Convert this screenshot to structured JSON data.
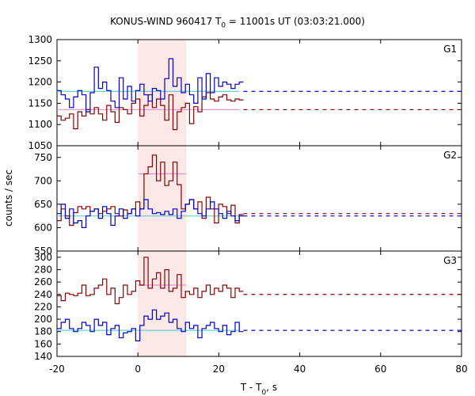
{
  "chart_data": {
    "type": "line",
    "title_main": "KONUS-WIND 960417 T",
    "title_sub": "0",
    "title_rest": " = 11001s UT (03:03:21.000)",
    "xlabel_main": "T - T",
    "xlabel_sub": "0",
    "xlabel_rest": ", s",
    "ylabel": "counts / sec",
    "xlim": [
      -20,
      80
    ],
    "xticks": [
      "-20",
      "0",
      "20",
      "40",
      "60",
      "80"
    ],
    "highlight_interval": [
      0,
      12
    ],
    "colors": {
      "dark_red": "#8b0000",
      "blue": "#0000cd",
      "cyan": "#5fd3d3",
      "pink": "#e88fe0",
      "shade": "#fde8e8"
    },
    "panels": [
      {
        "name": "G1",
        "ylim": [
          1050,
          1300
        ],
        "yticks": [
          1050,
          1100,
          1150,
          1200,
          1250,
          1300
        ],
        "series": [
          {
            "color": "dark_red",
            "x0": -20,
            "dx": 1.024,
            "values": [
              1120,
              1110,
              1115,
              1125,
              1090,
              1130,
              1120,
              1135,
              1125,
              1140,
              1125,
              1110,
              1145,
              1130,
              1105,
              1140,
              1135,
              1125,
              1150,
              1160,
              1120,
              1145,
              1170,
              1140,
              1160,
              1145,
              1110,
              1170,
              1088,
              1130,
              1140,
              1150,
              1102,
              1142,
              1130,
              1165,
              1175,
              1160,
              1155,
              1165,
              1170,
              1158,
              1155,
              1160,
              1158
            ],
            "background_level": 1135
          },
          {
            "color": "blue",
            "x0": -20,
            "dx": 1.024,
            "values": [
              1180,
              1170,
              1160,
              1140,
              1165,
              1180,
              1170,
              1130,
              1175,
              1235,
              1185,
              1200,
              1180,
              1155,
              1140,
              1210,
              1160,
              1190,
              1155,
              1180,
              1195,
              1170,
              1155,
              1185,
              1180,
              1160,
              1208,
              1255,
              1190,
              1210,
              1175,
              1195,
              1170,
              1150,
              1210,
              1160,
              1220,
              1175,
              1210,
              1190,
              1200,
              1195,
              1185,
              1195,
              1200
            ],
            "background_level": 1178
          }
        ],
        "levels": [
          {
            "color": "cyan",
            "x": [
              -20,
              25
            ],
            "y": 1178
          },
          {
            "color": "pink",
            "x": [
              -20,
              25
            ],
            "y": 1135
          }
        ]
      },
      {
        "name": "G2",
        "ylim": [
          550,
          775
        ],
        "yticks": [
          550,
          600,
          650,
          700,
          750
        ],
        "series": [
          {
            "color": "dark_red",
            "x0": -20,
            "dx": 1.024,
            "values": [
              615,
              640,
              625,
              605,
              632,
              645,
              640,
              645,
              635,
              640,
              630,
              635,
              640,
              645,
              630,
              625,
              638,
              630,
              640,
              655,
              640,
              715,
              730,
              755,
              700,
              740,
              690,
              700,
              740,
              692,
              640,
              650,
              660,
              640,
              655,
              620,
              665,
              640,
              610,
              650,
              645,
              630,
              648,
              610,
              628
            ],
            "background_level": 630
          },
          {
            "color": "blue",
            "x0": -20,
            "dx": 1.024,
            "values": [
              630,
              650,
              620,
              640,
              610,
              615,
              600,
              625,
              635,
              640,
              620,
              645,
              630,
              605,
              625,
              640,
              620,
              630,
              640,
              625,
              640,
              660,
              640,
              630,
              632,
              628,
              635,
              628,
              640,
              620,
              635,
              650,
              660,
              640,
              630,
              625,
              640,
              655,
              640,
              630,
              620,
              635,
              625,
              615,
              625
            ],
            "background_level": 625
          }
        ],
        "levels": [
          {
            "color": "cyan",
            "x": [
              -20,
              25
            ],
            "y": 625
          },
          {
            "color": "pink",
            "x": [
              0,
              12
            ],
            "y": 715
          }
        ]
      },
      {
        "name": "G3",
        "ylim": [
          140,
          310
        ],
        "yticks": [
          140,
          160,
          180,
          200,
          220,
          240,
          260,
          280,
          300
        ],
        "series": [
          {
            "color": "dark_red",
            "x0": -20,
            "dx": 1.024,
            "values": [
              238,
              230,
              242,
              240,
              238,
              242,
              255,
              238,
              240,
              250,
              255,
              265,
              240,
              250,
              225,
              235,
              255,
              240,
              245,
              262,
              255,
              300,
              250,
              265,
              275,
              250,
              280,
              245,
              250,
              272,
              235,
              245,
              240,
              250,
              235,
              245,
              255,
              240,
              250,
              245,
              255,
              250,
              235,
              250,
              245
            ],
            "background_level": 240
          },
          {
            "color": "blue",
            "x0": -20,
            "dx": 1.024,
            "values": [
              185,
              195,
              200,
              185,
              180,
              185,
              195,
              190,
              180,
              200,
              190,
              195,
              175,
              185,
              190,
              170,
              178,
              180,
              185,
              165,
              190,
              205,
              200,
              215,
              200,
              205,
              210,
              195,
              200,
              185,
              180,
              195,
              185,
              190,
              170,
              185,
              190,
              195,
              185,
              180,
              190,
              175,
              180,
              195,
              180
            ],
            "background_level": 182
          }
        ],
        "levels": [
          {
            "color": "cyan",
            "x": [
              -20,
              25
            ],
            "y": 182
          },
          {
            "color": "pink",
            "x": [
              0,
              12
            ],
            "y": 255
          }
        ]
      }
    ]
  }
}
